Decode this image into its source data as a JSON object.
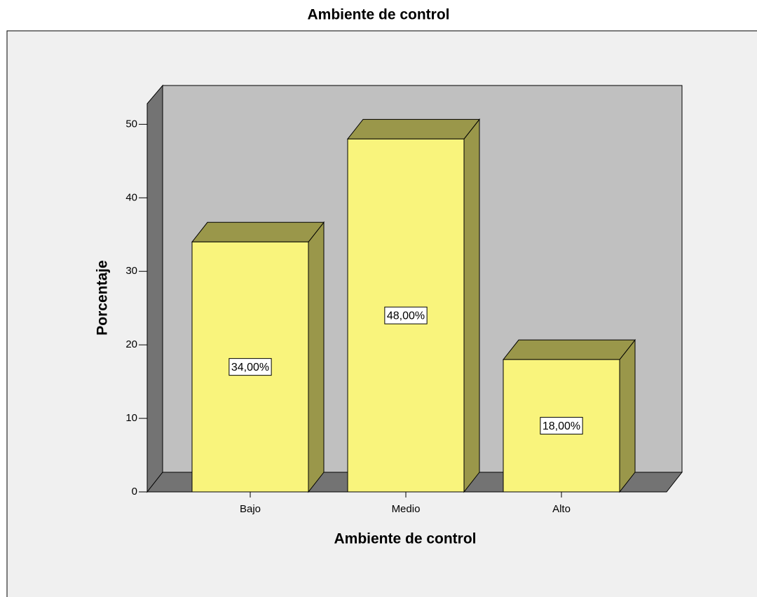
{
  "chart_data": {
    "type": "bar3d",
    "title": "Ambiente de control",
    "x_label": "Ambiente de control",
    "y_label": "Porcentaje",
    "categories": [
      "Bajo",
      "Medio",
      "Alto"
    ],
    "values": [
      34,
      48,
      18
    ],
    "value_labels": [
      "34,00%",
      "48,00%",
      "18,00%"
    ],
    "color": "#f9f47c",
    "ylim": [
      0,
      52.8
    ],
    "yticks": [
      0,
      10,
      20,
      30,
      40,
      50
    ]
  }
}
